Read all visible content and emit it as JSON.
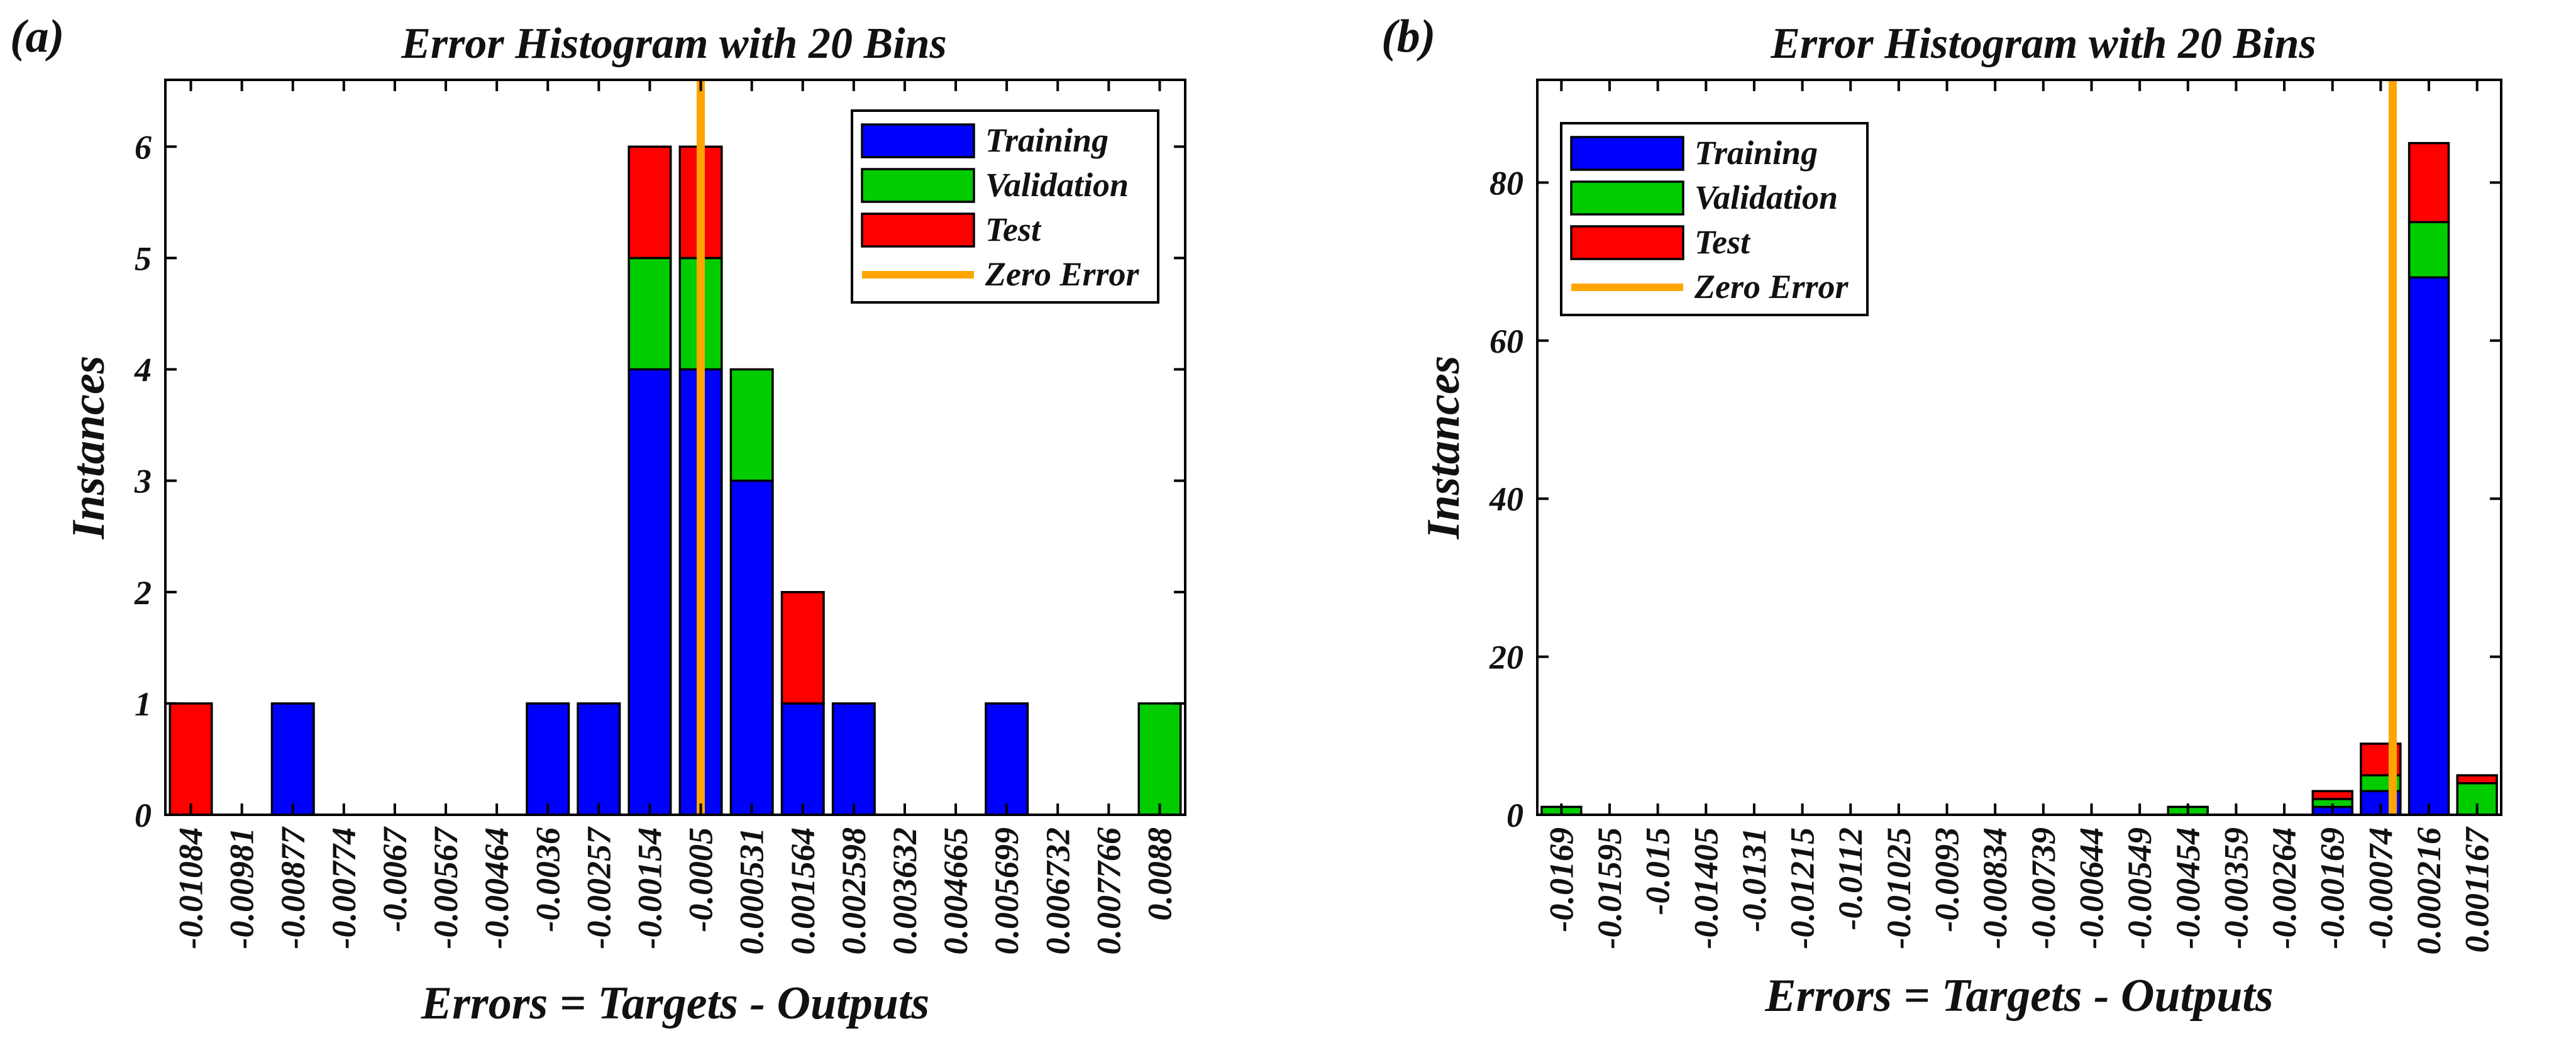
{
  "colors": {
    "Training": "#0000ff",
    "Validation": "#00cc00",
    "Test": "#ff0000",
    "zero_error": "#ffa500",
    "axis": "#000000"
  },
  "chart_data": [
    {
      "panel_label": "(a)",
      "type": "bar",
      "stacked": true,
      "title": "Error Histogram with 20 Bins",
      "xlabel": "Errors = Targets - Outputs",
      "ylabel": "Instances",
      "categories": [
        "-0.01084",
        "-0.00981",
        "-0.00877",
        "-0.00774",
        "-0.0067",
        "-0.00567",
        "-0.00464",
        "-0.0036",
        "-0.00257",
        "-0.00154",
        "-0.0005",
        "0.000531",
        "0.001564",
        "0.002598",
        "0.003632",
        "0.004665",
        "0.005699",
        "0.006732",
        "0.007766",
        "0.0088"
      ],
      "series": [
        {
          "name": "Training",
          "values": [
            0,
            0,
            1,
            0,
            0,
            0,
            0,
            1,
            1,
            4,
            4,
            3,
            1,
            1,
            0,
            0,
            1,
            0,
            0,
            0
          ]
        },
        {
          "name": "Validation",
          "values": [
            0,
            0,
            0,
            0,
            0,
            0,
            0,
            0,
            0,
            1,
            1,
            1,
            0,
            0,
            0,
            0,
            0,
            0,
            0,
            1
          ]
        },
        {
          "name": "Test",
          "values": [
            1,
            0,
            0,
            0,
            0,
            0,
            0,
            0,
            0,
            1,
            1,
            0,
            1,
            0,
            0,
            0,
            0,
            0,
            0,
            0
          ]
        }
      ],
      "zero_error_label": "Zero Error",
      "zero_error_bin_position": 10.5,
      "ylim": [
        0,
        6.6
      ],
      "yticks": [
        0,
        1,
        2,
        3,
        4,
        5,
        6
      ],
      "legend_position": "top-right",
      "grid": false
    },
    {
      "panel_label": "(b)",
      "type": "bar",
      "stacked": true,
      "title": "Error Histogram with 20 Bins",
      "xlabel": "Errors = Targets - Outputs",
      "ylabel": "Instances",
      "categories": [
        "-0.0169",
        "-0.01595",
        "-0.015",
        "-0.01405",
        "-0.0131",
        "-0.01215",
        "-0.0112",
        "-0.01025",
        "-0.0093",
        "-0.00834",
        "-0.00739",
        "-0.00644",
        "-0.00549",
        "-0.00454",
        "-0.00359",
        "-0.00264",
        "-0.00169",
        "-0.00074",
        "0.000216",
        "0.001167"
      ],
      "series": [
        {
          "name": "Training",
          "values": [
            0,
            0,
            0,
            0,
            0,
            0,
            0,
            0,
            0,
            0,
            0,
            0,
            0,
            0,
            0,
            0,
            1,
            3,
            68,
            0
          ]
        },
        {
          "name": "Validation",
          "values": [
            1,
            0,
            0,
            0,
            0,
            0,
            0,
            0,
            0,
            0,
            0,
            0,
            0,
            1,
            0,
            0,
            1,
            2,
            7,
            4
          ]
        },
        {
          "name": "Test",
          "values": [
            0,
            0,
            0,
            0,
            0,
            0,
            0,
            0,
            0,
            0,
            0,
            0,
            0,
            0,
            0,
            0,
            1,
            4,
            10,
            1
          ]
        }
      ],
      "zero_error_label": "Zero Error",
      "zero_error_bin_position": 17.75,
      "ylim": [
        0,
        93
      ],
      "yticks": [
        0,
        20,
        40,
        60,
        80
      ],
      "legend_position": "top-left",
      "grid": false
    }
  ]
}
